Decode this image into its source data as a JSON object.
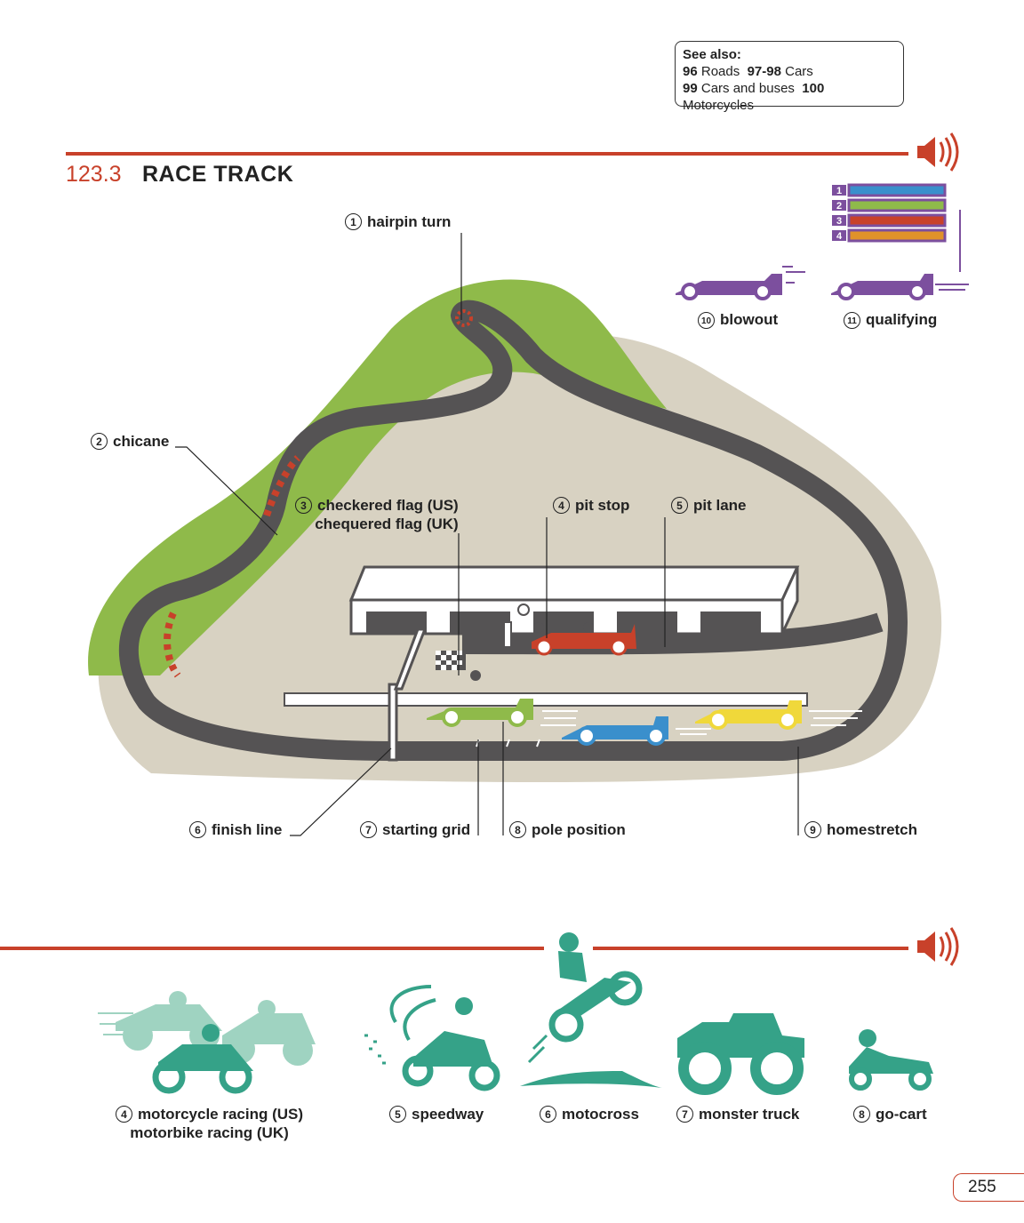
{
  "see_also": {
    "heading": "See also:",
    "lines": [
      [
        {
          "num": "96",
          "text": "Roads"
        },
        {
          "num": "97-98",
          "text": "Cars"
        }
      ],
      [
        {
          "num": "99",
          "text": "Cars and buses"
        },
        {
          "num": "100",
          "text": "Motorcycles"
        }
      ]
    ]
  },
  "section": {
    "number": "123.3",
    "title": "RACE TRACK"
  },
  "track_labels": {
    "hairpin_turn": {
      "n": "1",
      "text": "hairpin turn"
    },
    "chicane": {
      "n": "2",
      "text": "chicane"
    },
    "flag": {
      "n": "3",
      "us": "checkered flag (US)",
      "uk": "chequered flag (UK)"
    },
    "pit_stop": {
      "n": "4",
      "text": "pit stop"
    },
    "pit_lane": {
      "n": "5",
      "text": "pit lane"
    },
    "finish_line": {
      "n": "6",
      "text": "finish line"
    },
    "starting_grid": {
      "n": "7",
      "text": "starting grid"
    },
    "pole_position": {
      "n": "8",
      "text": "pole position"
    },
    "homestretch": {
      "n": "9",
      "text": "homestretch"
    },
    "blowout": {
      "n": "10",
      "text": "blowout"
    },
    "qualifying": {
      "n": "11",
      "text": "qualifying"
    }
  },
  "bottom_labels": {
    "motorcycle": {
      "n": "4",
      "us": "motorcycle racing (US)",
      "uk": "motorbike racing (UK)"
    },
    "speedway": {
      "n": "5",
      "text": "speedway"
    },
    "motocross": {
      "n": "6",
      "text": "motocross"
    },
    "monster_truck": {
      "n": "7",
      "text": "monster truck"
    },
    "go_cart": {
      "n": "8",
      "text": "go-cart"
    }
  },
  "qualifying_positions": [
    "1",
    "2",
    "3",
    "4"
  ],
  "page_number": "255",
  "colors": {
    "accent": "#c8412a",
    "grass": "#8fba4a",
    "sand": "#d8d2c2",
    "track": "#555354",
    "purple": "#7c4f9e",
    "teal": "#35a288"
  }
}
